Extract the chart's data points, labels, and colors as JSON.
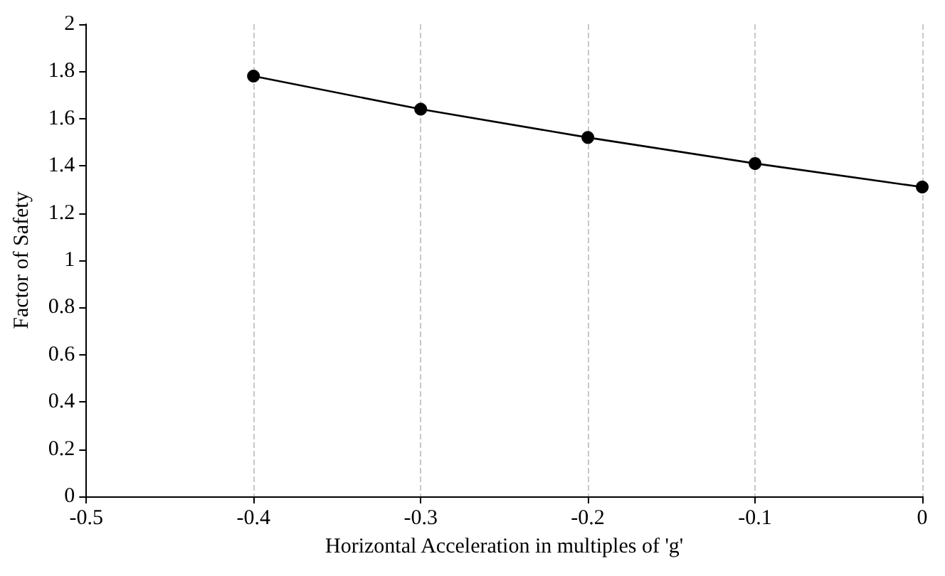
{
  "chart_data": {
    "type": "line",
    "xlabel": "Horizontal Acceleration in multiples of 'g'",
    "ylabel": "Factor of Safety",
    "x": [
      -0.4,
      -0.3,
      -0.2,
      -0.1,
      0
    ],
    "series": [
      {
        "color": "#000000",
        "values": [
          1.78,
          1.64,
          1.52,
          1.41,
          1.31
        ]
      }
    ],
    "xlim": [
      -0.5,
      0
    ],
    "xticks": [
      -0.5,
      -0.4,
      -0.3,
      -0.2,
      -0.1,
      0
    ],
    "ylim": [
      0,
      2
    ],
    "yticks": [
      0,
      0.2,
      0.4,
      0.6,
      0.8,
      1,
      1.2,
      1.4,
      1.6,
      1.8,
      2
    ],
    "grid": "x",
    "marker": "circle",
    "line_style": "solid"
  }
}
